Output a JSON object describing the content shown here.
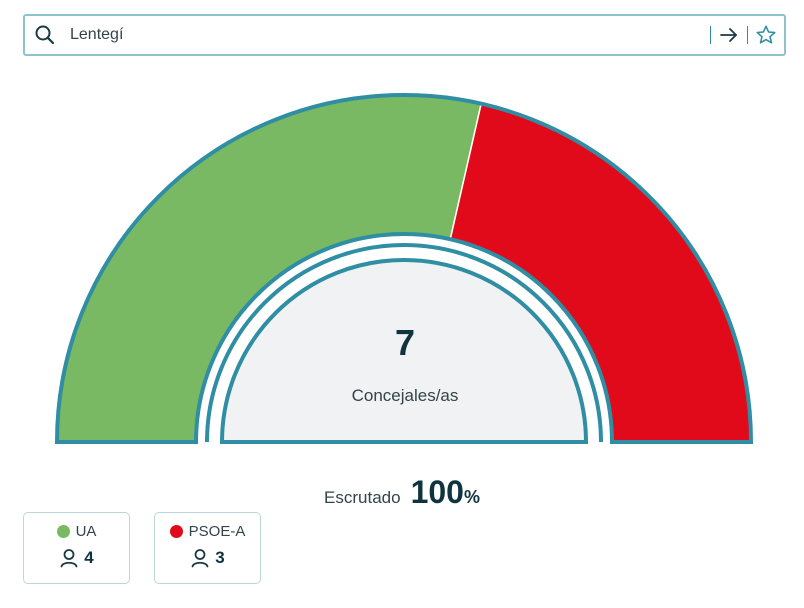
{
  "search": {
    "value": "Lentegí",
    "search_icon": "search-icon",
    "go_icon": "arrow-right-icon",
    "favorite_icon": "star-icon"
  },
  "chart_data": {
    "type": "hemicycle",
    "total_seats": 7,
    "segments": [
      {
        "party": "UA",
        "seats": 4,
        "color": "#7ab963"
      },
      {
        "party": "PSOE-A",
        "seats": 3,
        "color": "#e00a1b"
      }
    ]
  },
  "center": {
    "number": "7",
    "label": "Concejales/as"
  },
  "scrutiny": {
    "label": "Escrutado",
    "value": "100",
    "unit": "%"
  },
  "parties": [
    {
      "name": "UA",
      "color": "#7ab963",
      "seats": "4",
      "icon": "person-icon"
    },
    {
      "name": "PSOE-A",
      "color": "#e00a1b",
      "seats": "3",
      "icon": "person-icon"
    }
  ],
  "colors": {
    "accent": "#2f8ea3",
    "inner_fill": "#f0f2f3"
  }
}
